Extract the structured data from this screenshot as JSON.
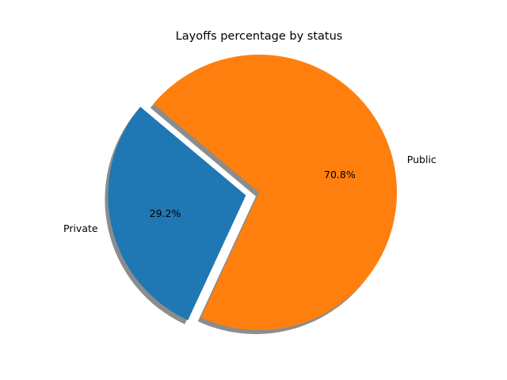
{
  "chart_data": {
    "type": "pie",
    "title": "Layoffs percentage by status",
    "slices": [
      {
        "label": "Private",
        "value": 29.2,
        "pct_label": "29.2%",
        "color": "#1f77b4",
        "exploded": true
      },
      {
        "label": "Public",
        "value": 70.8,
        "pct_label": "70.8%",
        "color": "#ff7f0e",
        "exploded": false
      }
    ],
    "shadow": true,
    "legend": "none",
    "start_angle_deg": 140
  }
}
